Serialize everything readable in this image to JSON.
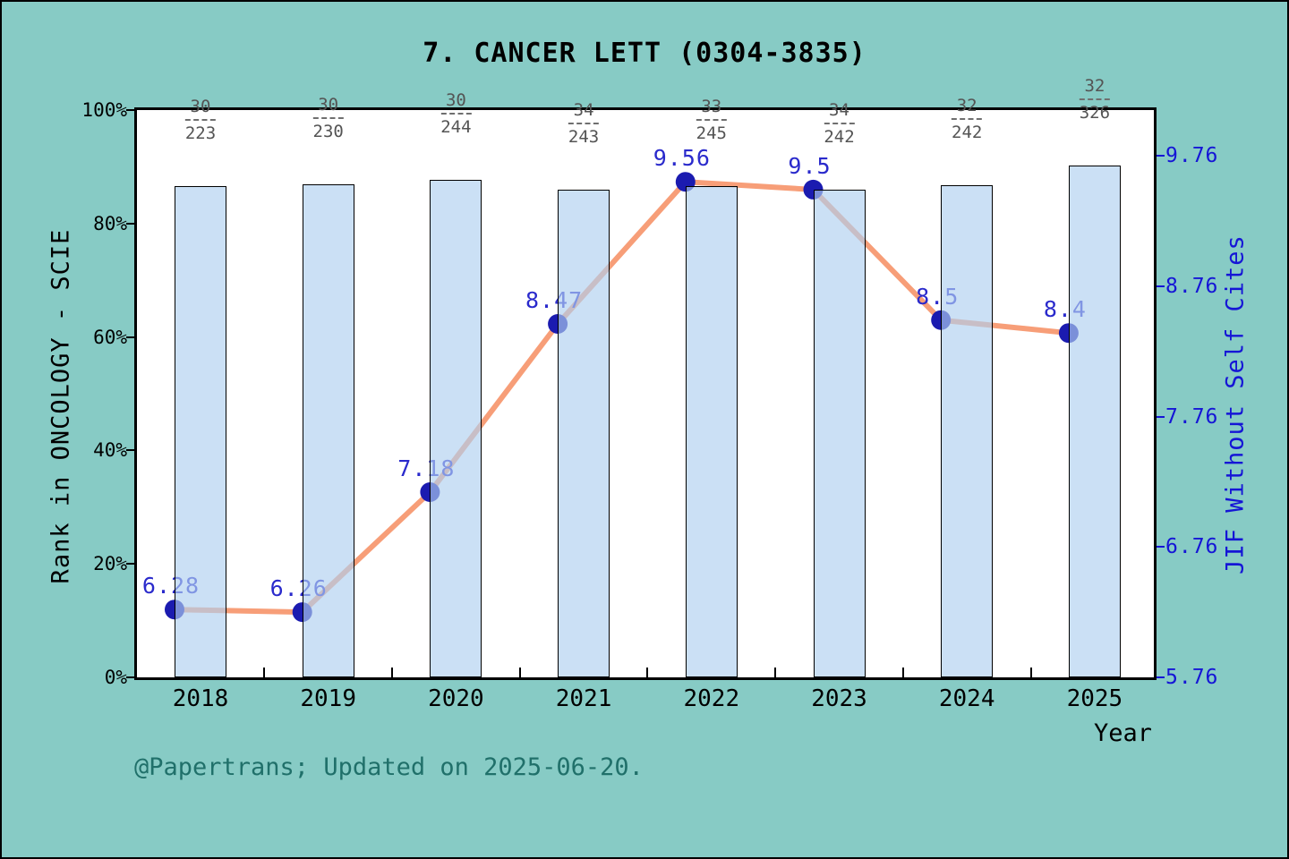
{
  "title": "7. CANCER LETT (0304-3835)",
  "caption": "@Papertrans; Updated on 2025-06-20.",
  "left_axis": {
    "label": "Rank in ONCOLOGY - SCIE",
    "ticks": [
      {
        "text": "0%",
        "value": 0
      },
      {
        "text": "20%",
        "value": 20
      },
      {
        "text": "40%",
        "value": 40
      },
      {
        "text": "60%",
        "value": 60
      },
      {
        "text": "80%",
        "value": 80
      },
      {
        "text": "100%",
        "value": 100
      }
    ]
  },
  "right_axis": {
    "label": "JIF Without Self Cites",
    "min": 5.76,
    "max": 10.11,
    "ticks": [
      {
        "text": "5.76",
        "value": 5.76
      },
      {
        "text": "6.76",
        "value": 6.76
      },
      {
        "text": "7.76",
        "value": 7.76
      },
      {
        "text": "8.76",
        "value": 8.76
      },
      {
        "text": "9.76",
        "value": 9.76
      }
    ]
  },
  "x_axis": {
    "label": "Year"
  },
  "chart_data": {
    "type": "bar+line",
    "categories": [
      "2018",
      "2019",
      "2020",
      "2021",
      "2022",
      "2023",
      "2024",
      "2025"
    ],
    "series": [
      {
        "name": "Rank in ONCOLOGY - SCIE (percentile bars)",
        "type": "bar",
        "rank": [
          30,
          30,
          30,
          34,
          33,
          34,
          32,
          32
        ],
        "total": [
          223,
          230,
          244,
          243,
          245,
          242,
          242,
          326
        ],
        "fraction_labels": [
          {
            "numerator": "30",
            "denominator": "223"
          },
          {
            "numerator": "30",
            "denominator": "230"
          },
          {
            "numerator": "30",
            "denominator": "244"
          },
          {
            "numerator": "34",
            "denominator": "243"
          },
          {
            "numerator": "33",
            "denominator": "245"
          },
          {
            "numerator": "34",
            "denominator": "242"
          },
          {
            "numerator": "32",
            "denominator": "242"
          },
          {
            "numerator": "32",
            "denominator": "326"
          }
        ],
        "percentile_percent": [
          86.55,
          86.96,
          87.7,
          86.01,
          86.53,
          85.95,
          86.78,
          90.18
        ]
      },
      {
        "name": "JIF Without Self Cites",
        "type": "line",
        "values": [
          6.28,
          6.26,
          7.18,
          8.47,
          9.56,
          9.5,
          8.5,
          8.4
        ],
        "point_labels": [
          "6.28",
          "6.26",
          "7.18",
          "8.47",
          "9.56",
          "9.5",
          "8.5",
          "8.4"
        ]
      }
    ],
    "left_axis_range_percent": [
      0,
      100
    ],
    "right_axis_range": [
      5.76,
      10.11
    ],
    "grid": false,
    "legend": "none"
  },
  "colors": {
    "background": "#87cbc5",
    "plot_background": "#ffffff",
    "bar_fill": "rgba(175,207,240,0.65)",
    "bar_border": "#000000",
    "line": "#f79e78",
    "marker": "#1b1bb0",
    "value_label": "#2a2acc",
    "right_axis": "#1515d6",
    "fraction_text": "#545454",
    "caption": "#20706a"
  }
}
